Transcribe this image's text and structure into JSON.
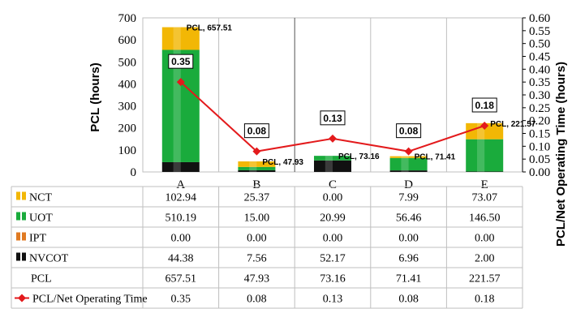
{
  "chart_data": {
    "type": "bar",
    "categories": [
      "A",
      "B",
      "C",
      "D",
      "E"
    ],
    "ylabel": "PCL  (hours)",
    "y2label": "PCL/Net Operating Time (hours)",
    "ylim": [
      0,
      700
    ],
    "yticks": [
      "0",
      "100",
      "200",
      "300",
      "400",
      "500",
      "600",
      "700"
    ],
    "y2lim": [
      0,
      0.6
    ],
    "y2ticks": [
      "0.00",
      "0.05",
      "0.10",
      "0.15",
      "0.20",
      "0.25",
      "0.30",
      "0.35",
      "0.40",
      "0.45",
      "0.50",
      "0.55",
      "0.60"
    ],
    "series": [
      {
        "name": "NCT",
        "color": "#f2b705",
        "values": [
          102.94,
          25.37,
          0.0,
          7.99,
          73.07
        ],
        "display": [
          "102.94",
          "25.37",
          "0.00",
          "7.99",
          "73.07"
        ]
      },
      {
        "name": "UOT",
        "color": "#1aab3c",
        "values": [
          510.19,
          15.0,
          20.99,
          56.46,
          146.5
        ],
        "display": [
          "510.19",
          "15.00",
          "20.99",
          "56.46",
          "146.50"
        ]
      },
      {
        "name": "IPT",
        "color": "#e07a22",
        "values": [
          0.0,
          0.0,
          0.0,
          0.0,
          0.0
        ],
        "display": [
          "0.00",
          "0.00",
          "0.00",
          "0.00",
          "0.00"
        ]
      },
      {
        "name": "NVCOT",
        "color": "#111111",
        "values": [
          44.38,
          7.56,
          52.17,
          6.96,
          2.0
        ],
        "display": [
          "44.38",
          "7.56",
          "52.17",
          "6.96",
          "2.00"
        ]
      }
    ],
    "pcl": {
      "name": "PCL",
      "values": [
        657.51,
        47.93,
        73.16,
        71.41,
        221.57
      ],
      "display": [
        "657.51",
        "47.93",
        "73.16",
        "71.41",
        "221.57"
      ],
      "labels": [
        "PCL, 657.51",
        "PCL, 47.93",
        "PCL, 73.16",
        "PCL, 71.41",
        "PCL, 221.57"
      ]
    },
    "ratio": {
      "name": "PCL/Net Operating Time",
      "color": "#e31a1c",
      "values": [
        0.35,
        0.08,
        0.13,
        0.08,
        0.18
      ],
      "display": [
        "0.35",
        "0.08",
        "0.13",
        "0.08",
        "0.18"
      ]
    },
    "grid": true,
    "legend": "data-table"
  }
}
